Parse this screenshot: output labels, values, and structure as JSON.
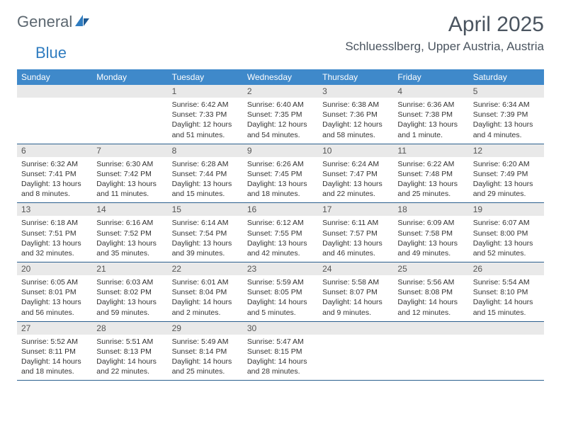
{
  "brand": {
    "part1": "General",
    "part2": "Blue"
  },
  "title": "April 2025",
  "location": "Schluesslberg, Upper Austria, Austria",
  "colors": {
    "header_bg": "#3f89ca",
    "header_text": "#ffffff",
    "daynum_bg": "#e9e9e9",
    "border": "#2b5f8e",
    "brand_gray": "#5c6770",
    "brand_blue": "#2f7cc0",
    "title_color": "#4b5560"
  },
  "day_headers": [
    "Sunday",
    "Monday",
    "Tuesday",
    "Wednesday",
    "Thursday",
    "Friday",
    "Saturday"
  ],
  "weeks": [
    [
      null,
      null,
      {
        "n": "1",
        "sr": "6:42 AM",
        "ss": "7:33 PM",
        "dl": "12 hours and 51 minutes."
      },
      {
        "n": "2",
        "sr": "6:40 AM",
        "ss": "7:35 PM",
        "dl": "12 hours and 54 minutes."
      },
      {
        "n": "3",
        "sr": "6:38 AM",
        "ss": "7:36 PM",
        "dl": "12 hours and 58 minutes."
      },
      {
        "n": "4",
        "sr": "6:36 AM",
        "ss": "7:38 PM",
        "dl": "13 hours and 1 minute."
      },
      {
        "n": "5",
        "sr": "6:34 AM",
        "ss": "7:39 PM",
        "dl": "13 hours and 4 minutes."
      }
    ],
    [
      {
        "n": "6",
        "sr": "6:32 AM",
        "ss": "7:41 PM",
        "dl": "13 hours and 8 minutes."
      },
      {
        "n": "7",
        "sr": "6:30 AM",
        "ss": "7:42 PM",
        "dl": "13 hours and 11 minutes."
      },
      {
        "n": "8",
        "sr": "6:28 AM",
        "ss": "7:44 PM",
        "dl": "13 hours and 15 minutes."
      },
      {
        "n": "9",
        "sr": "6:26 AM",
        "ss": "7:45 PM",
        "dl": "13 hours and 18 minutes."
      },
      {
        "n": "10",
        "sr": "6:24 AM",
        "ss": "7:47 PM",
        "dl": "13 hours and 22 minutes."
      },
      {
        "n": "11",
        "sr": "6:22 AM",
        "ss": "7:48 PM",
        "dl": "13 hours and 25 minutes."
      },
      {
        "n": "12",
        "sr": "6:20 AM",
        "ss": "7:49 PM",
        "dl": "13 hours and 29 minutes."
      }
    ],
    [
      {
        "n": "13",
        "sr": "6:18 AM",
        "ss": "7:51 PM",
        "dl": "13 hours and 32 minutes."
      },
      {
        "n": "14",
        "sr": "6:16 AM",
        "ss": "7:52 PM",
        "dl": "13 hours and 35 minutes."
      },
      {
        "n": "15",
        "sr": "6:14 AM",
        "ss": "7:54 PM",
        "dl": "13 hours and 39 minutes."
      },
      {
        "n": "16",
        "sr": "6:12 AM",
        "ss": "7:55 PM",
        "dl": "13 hours and 42 minutes."
      },
      {
        "n": "17",
        "sr": "6:11 AM",
        "ss": "7:57 PM",
        "dl": "13 hours and 46 minutes."
      },
      {
        "n": "18",
        "sr": "6:09 AM",
        "ss": "7:58 PM",
        "dl": "13 hours and 49 minutes."
      },
      {
        "n": "19",
        "sr": "6:07 AM",
        "ss": "8:00 PM",
        "dl": "13 hours and 52 minutes."
      }
    ],
    [
      {
        "n": "20",
        "sr": "6:05 AM",
        "ss": "8:01 PM",
        "dl": "13 hours and 56 minutes."
      },
      {
        "n": "21",
        "sr": "6:03 AM",
        "ss": "8:02 PM",
        "dl": "13 hours and 59 minutes."
      },
      {
        "n": "22",
        "sr": "6:01 AM",
        "ss": "8:04 PM",
        "dl": "14 hours and 2 minutes."
      },
      {
        "n": "23",
        "sr": "5:59 AM",
        "ss": "8:05 PM",
        "dl": "14 hours and 5 minutes."
      },
      {
        "n": "24",
        "sr": "5:58 AM",
        "ss": "8:07 PM",
        "dl": "14 hours and 9 minutes."
      },
      {
        "n": "25",
        "sr": "5:56 AM",
        "ss": "8:08 PM",
        "dl": "14 hours and 12 minutes."
      },
      {
        "n": "26",
        "sr": "5:54 AM",
        "ss": "8:10 PM",
        "dl": "14 hours and 15 minutes."
      }
    ],
    [
      {
        "n": "27",
        "sr": "5:52 AM",
        "ss": "8:11 PM",
        "dl": "14 hours and 18 minutes."
      },
      {
        "n": "28",
        "sr": "5:51 AM",
        "ss": "8:13 PM",
        "dl": "14 hours and 22 minutes."
      },
      {
        "n": "29",
        "sr": "5:49 AM",
        "ss": "8:14 PM",
        "dl": "14 hours and 25 minutes."
      },
      {
        "n": "30",
        "sr": "5:47 AM",
        "ss": "8:15 PM",
        "dl": "14 hours and 28 minutes."
      },
      null,
      null,
      null
    ]
  ],
  "labels": {
    "sunrise": "Sunrise:",
    "sunset": "Sunset:",
    "daylight": "Daylight:"
  }
}
